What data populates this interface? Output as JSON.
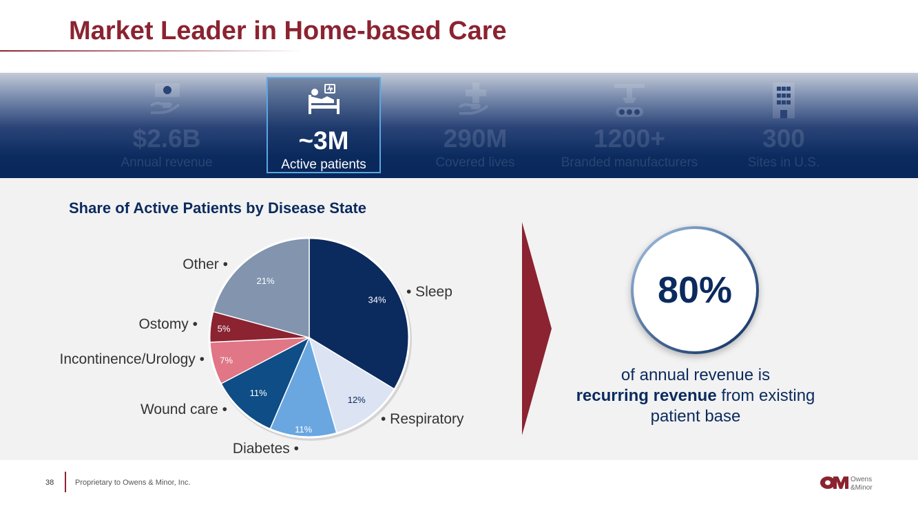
{
  "header": {
    "title": "Market Leader in Home-based Care"
  },
  "stats": [
    {
      "value": "$2.6B",
      "label": "Annual revenue",
      "icon": "money-hand-icon",
      "active": false
    },
    {
      "value": "~3M",
      "label": "Active patients",
      "icon": "patient-bed-icon",
      "active": true
    },
    {
      "value": "290M",
      "label": "Covered lives",
      "icon": "medical-cross-hand-icon",
      "active": false
    },
    {
      "value": "1200+",
      "label": "Branded manufacturers",
      "icon": "manufacturing-robot-icon",
      "active": false
    },
    {
      "value": "300",
      "label": "Sites in U.S.",
      "icon": "building-icon",
      "active": false
    }
  ],
  "chart_data": {
    "type": "pie",
    "title": "Share of Active Patients by Disease State",
    "slices": [
      {
        "label": "Sleep",
        "value": 34,
        "display": "34%",
        "color": "#0b2a5e",
        "text_color": "#ffffff"
      },
      {
        "label": "Respiratory",
        "value": 12,
        "display": "12%",
        "color": "#dce3f3",
        "text_color": "#0b2a5e"
      },
      {
        "label": "Diabetes",
        "value": 11,
        "display": "11%",
        "color": "#6aa7e0",
        "text_color": "#ffffff"
      },
      {
        "label": "Wound care",
        "value": 11,
        "display": "11%",
        "color": "#0e4d86",
        "text_color": "#ffffff"
      },
      {
        "label": "Incontinence/Urology",
        "value": 7,
        "display": "7%",
        "color": "#e07686",
        "text_color": "#ffffff"
      },
      {
        "label": "Ostomy",
        "value": 5,
        "display": "5%",
        "color": "#8b2331",
        "text_color": "#ffffff"
      },
      {
        "label": "Other",
        "value": 21,
        "display": "21%",
        "color": "#8294ae",
        "text_color": "#ffffff"
      }
    ]
  },
  "callout": {
    "percent": "80%",
    "text_before": "of annual revenue is",
    "text_bold": "recurring revenue",
    "text_after": "from existing patient base"
  },
  "footer": {
    "page_number": "38",
    "text": "Proprietary to Owens & Minor, Inc.",
    "logo_text_1": "Owens",
    "logo_text_2": "&Minor"
  },
  "colors": {
    "brand_red": "#8b2331",
    "navy": "#0b2a5e",
    "highlight_border": "#5aa7e6"
  }
}
